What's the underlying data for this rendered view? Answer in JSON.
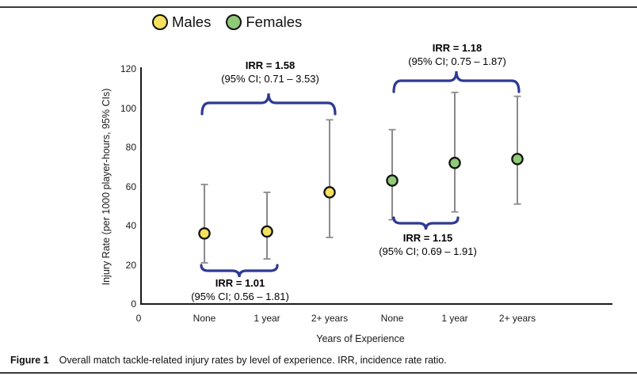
{
  "colors": {
    "males_marker": "#f5e05f",
    "females_marker": "#90c977",
    "marker_outline": "#111111",
    "brace": "#2e3a93",
    "whisker_line": "#4a4a4a",
    "whisker_cap": "#8c8c8c",
    "axis": "#1a1a1a"
  },
  "chart_data": {
    "type": "scatter",
    "title": "",
    "xlabel": "Years of Experience",
    "ylabel": "Injury Rate (per 1000 player-hours, 95% CIs)",
    "ylim": [
      0,
      120
    ],
    "yticks": [
      0,
      20,
      40,
      60,
      80,
      100,
      120
    ],
    "x_tick_labels": [
      "0",
      "None",
      "1 year",
      "2+ years",
      "None",
      "1 year",
      "2+ years"
    ],
    "grid": false,
    "legend_position": "top",
    "error_bars": "95% CI",
    "series": [
      {
        "name": "Males",
        "marker_color": "#f5e05f",
        "points": [
          {
            "category": "None",
            "value": 36,
            "ci_low": 21,
            "ci_high": 61
          },
          {
            "category": "1 year",
            "value": 37,
            "ci_low": 23,
            "ci_high": 57
          },
          {
            "category": "2+ years",
            "value": 57,
            "ci_low": 34,
            "ci_high": 94
          }
        ]
      },
      {
        "name": "Females",
        "marker_color": "#90c977",
        "points": [
          {
            "category": "None",
            "value": 63,
            "ci_low": 43,
            "ci_high": 89
          },
          {
            "category": "1 year",
            "value": 72,
            "ci_low": 47,
            "ci_high": 108
          },
          {
            "category": "2+ years",
            "value": 74,
            "ci_low": 51,
            "ci_high": 106
          }
        ]
      }
    ],
    "annotations": [
      {
        "name": "irr-males-none-vs-2plus",
        "line1": "IRR = 1.58",
        "line2": "(95% CI; 0.71 – 3.53)"
      },
      {
        "name": "irr-females-none-vs-2plus",
        "line1": "IRR = 1.18",
        "line2": "(95% CI; 0.75 – 1.87)"
      },
      {
        "name": "irr-males-none-vs-1year",
        "line1": "IRR = 1.01",
        "line2": "(95% CI; 0.56 – 1.81)"
      },
      {
        "name": "irr-females-none-vs-1year",
        "line1": "IRR = 1.15",
        "line2": "(95% CI; 0.69 – 1.91)"
      }
    ]
  },
  "caption": {
    "label": "Figure 1",
    "text": "Overall match tackle-related injury rates by level of experience. IRR, incidence rate ratio."
  }
}
